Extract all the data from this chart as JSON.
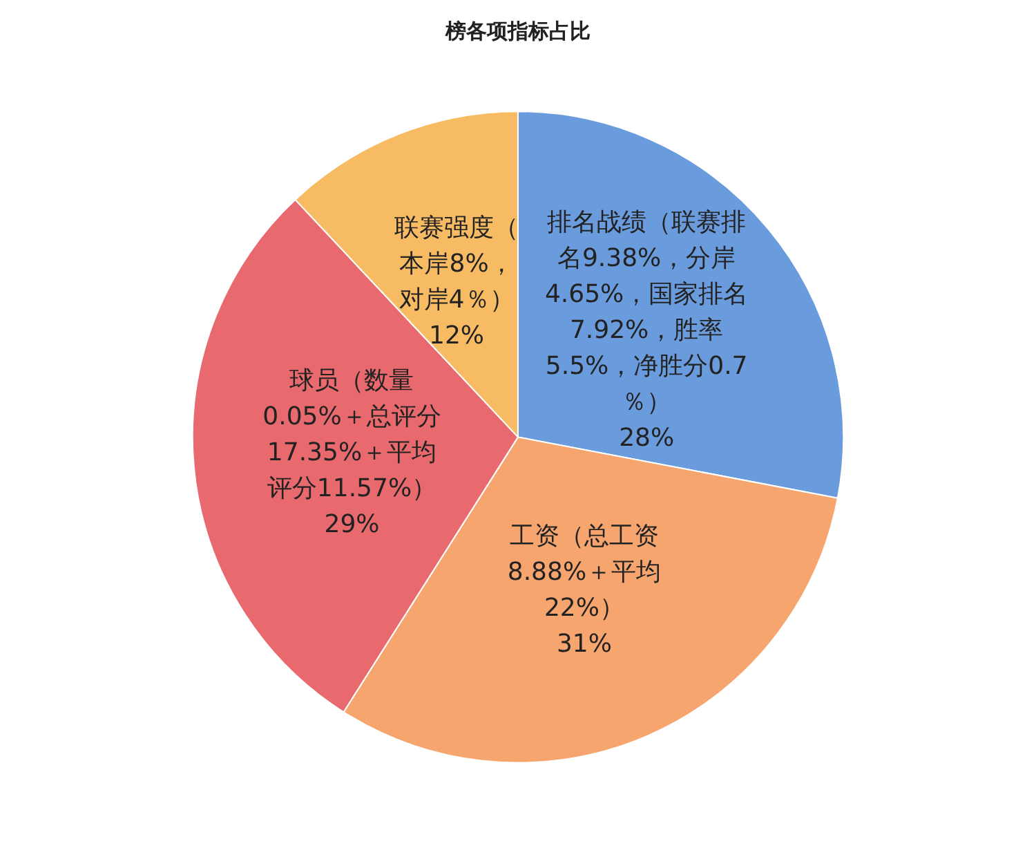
{
  "chart_data": {
    "type": "pie",
    "title": "榜各项指标占比",
    "categories": [
      "排名战绩（联赛排名9.38%，分岸4.65%，国家排名7.92%，胜率5.5%，净胜分0.7％）",
      "工资（总工资8.88%＋平均22%）",
      "球员（数量0.05%＋总评分17.35%＋平均评分11.57%）",
      "联赛强度（本岸8%，对岸4％）"
    ],
    "values": [
      28,
      31,
      29,
      12
    ],
    "value_labels": [
      "28%",
      "31%",
      "29%",
      "12%"
    ],
    "colors": [
      "#6a9bdc",
      "#f5a56d",
      "#e96a6e",
      "#f7bb63"
    ],
    "legend": false
  }
}
